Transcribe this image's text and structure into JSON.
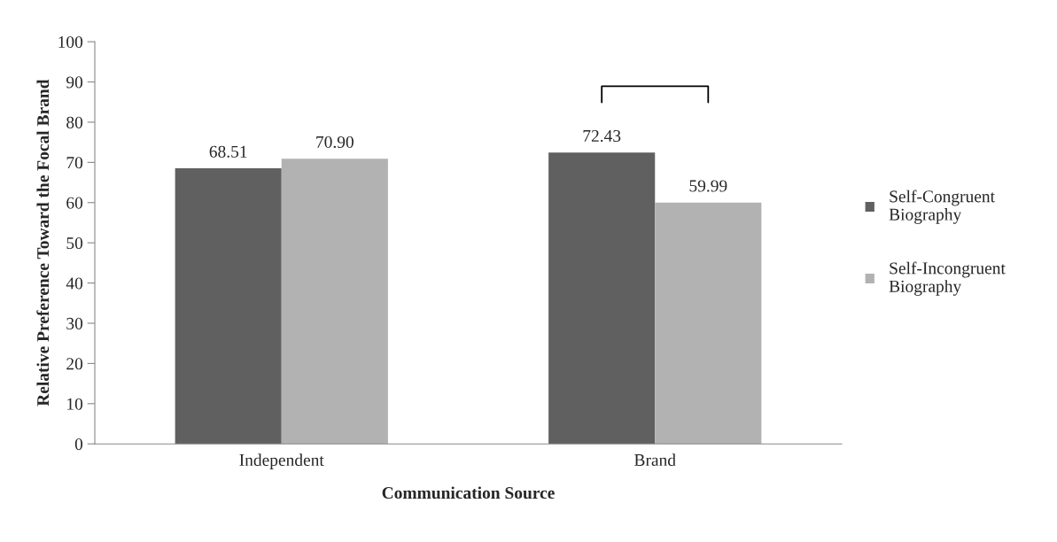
{
  "chart_data": {
    "type": "bar",
    "xlabel": "Communication Source",
    "ylabel": "Relative Preference Toward the Focal Brand",
    "categories": [
      "Independent",
      "Brand"
    ],
    "series": [
      {
        "name": "Self-Congruent\nBiography",
        "color": "#606060",
        "values": [
          68.51,
          72.43
        ],
        "value_labels": [
          "68.51",
          "72.43"
        ]
      },
      {
        "name": "Self-Incongruent\nBiography",
        "color": "#b2b2b2",
        "values": [
          70.9,
          59.99
        ],
        "value_labels": [
          "70.90",
          "59.99"
        ]
      }
    ],
    "ylim": [
      0,
      100
    ],
    "yticks": [
      0,
      10,
      20,
      30,
      40,
      50,
      60,
      70,
      80,
      90,
      100
    ],
    "grid": false,
    "legend": "right"
  }
}
